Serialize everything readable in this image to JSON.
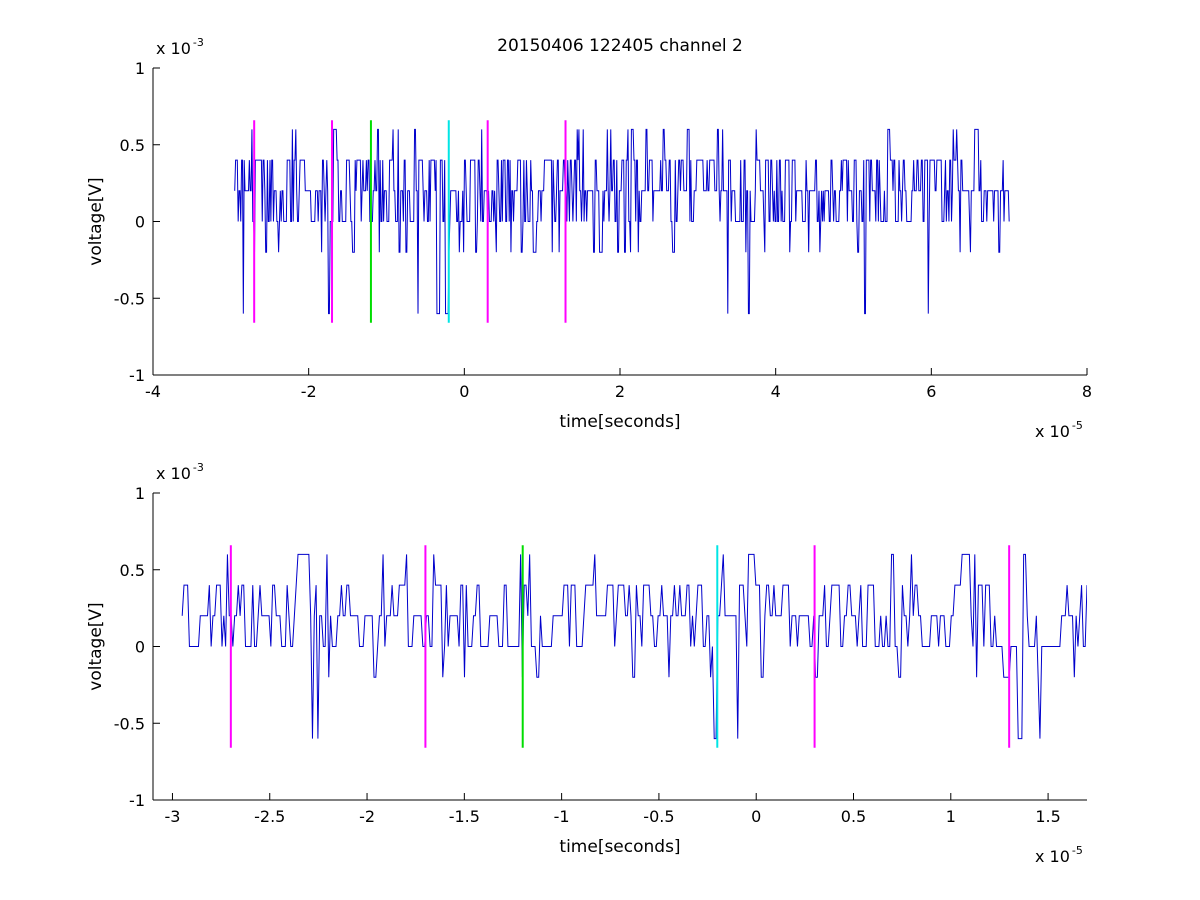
{
  "figure": {
    "title": "20150406 122405 channel 2"
  },
  "chart_data": [
    {
      "type": "line",
      "title": "20150406 122405 channel 2",
      "xlabel": "time[seconds]",
      "ylabel": "voltage[V]",
      "x_multiplier": "x 10",
      "x_exponent": "-5",
      "y_multiplier": "x 10",
      "y_exponent": "-3",
      "xlim": [
        -4,
        8
      ],
      "ylim": [
        -1,
        1
      ],
      "x_ticks": [
        -4,
        -2,
        0,
        2,
        4,
        6,
        8
      ],
      "x_tick_labels": [
        "-4",
        "-2",
        "0",
        "2",
        "4",
        "6",
        "8"
      ],
      "y_ticks": [
        -1,
        -0.5,
        0,
        0.5,
        1
      ],
      "y_tick_labels": [
        "-1",
        "-0.5",
        "0",
        "0.5",
        "1"
      ],
      "signal": {
        "color": "#0000cc",
        "x_start": -2.95,
        "x_end": 7.0,
        "levels": [
          -0.6,
          -0.2,
          0,
          0.2,
          0.4,
          0.6
        ]
      },
      "markers": [
        {
          "x": -2.7,
          "color": "#ff00ff",
          "y_range": [
            -0.66,
            0.66
          ]
        },
        {
          "x": -1.7,
          "color": "#ff00ff",
          "y_range": [
            -0.66,
            0.66
          ]
        },
        {
          "x": -1.2,
          "color": "#00dd00",
          "y_range": [
            -0.66,
            0.66
          ]
        },
        {
          "x": -0.2,
          "color": "#00e5e5",
          "y_range": [
            -0.66,
            0.66
          ]
        },
        {
          "x": 0.3,
          "color": "#ff00ff",
          "y_range": [
            -0.66,
            0.66
          ]
        },
        {
          "x": 1.3,
          "color": "#ff00ff",
          "y_range": [
            -0.66,
            0.66
          ]
        }
      ],
      "grid": false
    },
    {
      "type": "line",
      "xlabel": "time[seconds]",
      "ylabel": "voltage[V]",
      "x_multiplier": "x 10",
      "x_exponent": "-5",
      "y_multiplier": "x 10",
      "y_exponent": "-3",
      "xlim": [
        -3.1,
        1.7
      ],
      "ylim": [
        -1,
        1
      ],
      "x_ticks": [
        -3,
        -2.5,
        -2,
        -1.5,
        -1,
        -0.5,
        0,
        0.5,
        1,
        1.5
      ],
      "x_tick_labels": [
        "-3",
        "-2.5",
        "-2",
        "-1.5",
        "-1",
        "-0.5",
        "0",
        "0.5",
        "1",
        "1.5"
      ],
      "y_ticks": [
        -1,
        -0.5,
        0,
        0.5,
        1
      ],
      "y_tick_labels": [
        "-1",
        "-0.5",
        "0",
        "0.5",
        "1"
      ],
      "signal": {
        "color": "#0000cc",
        "x_start": -2.95,
        "x_end": 1.7,
        "levels": [
          -0.6,
          -0.2,
          0,
          0.2,
          0.4,
          0.6
        ]
      },
      "markers": [
        {
          "x": -2.7,
          "color": "#ff00ff",
          "y_range": [
            -0.66,
            0.66
          ]
        },
        {
          "x": -1.7,
          "color": "#ff00ff",
          "y_range": [
            -0.66,
            0.66
          ]
        },
        {
          "x": -1.2,
          "color": "#00dd00",
          "y_range": [
            -0.66,
            0.66
          ]
        },
        {
          "x": -0.2,
          "color": "#00e5e5",
          "y_range": [
            -0.66,
            0.66
          ]
        },
        {
          "x": 0.3,
          "color": "#ff00ff",
          "y_range": [
            -0.66,
            0.66
          ]
        },
        {
          "x": 1.3,
          "color": "#ff00ff",
          "y_range": [
            -0.66,
            0.66
          ]
        }
      ],
      "grid": false
    }
  ]
}
